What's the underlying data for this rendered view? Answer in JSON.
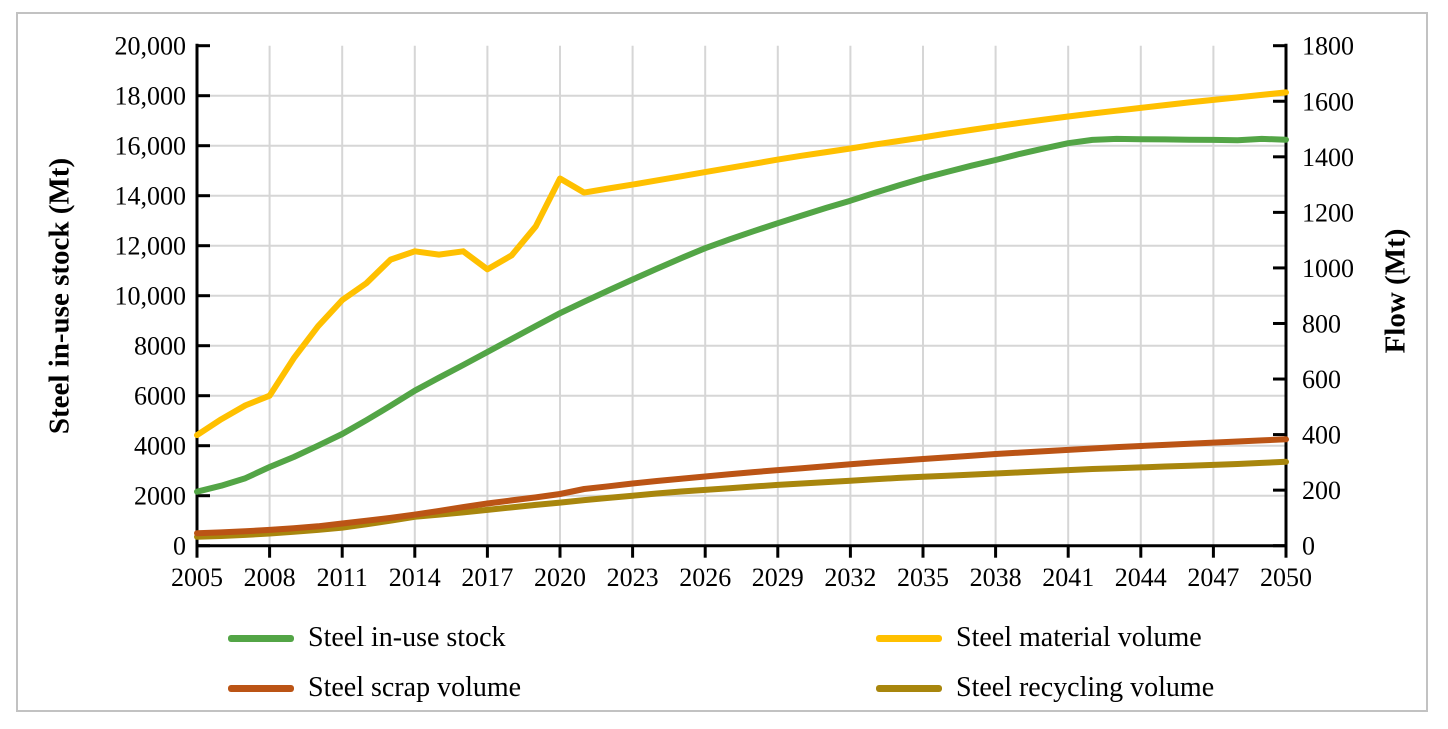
{
  "figure": {
    "background_color": "#ffffff",
    "border_color": "#c2c2c2",
    "gridline_color": "#d6d6d6",
    "axis_color": "#000000"
  },
  "chart_data": {
    "type": "line",
    "title": "",
    "grid": true,
    "legend_position": "bottom",
    "left_axis": {
      "label": "Steel in-use stock (Mt)",
      "min": 0,
      "max": 20000,
      "ticks": [
        {
          "value": 20000,
          "label": "20,000"
        },
        {
          "value": 18000,
          "label": "18,000"
        },
        {
          "value": 16000,
          "label": "16,000"
        },
        {
          "value": 14000,
          "label": "14,000"
        },
        {
          "value": 12000,
          "label": "12,000"
        },
        {
          "value": 10000,
          "label": "10,000"
        },
        {
          "value": 8000,
          "label": "8000"
        },
        {
          "value": 6000,
          "label": "6000"
        },
        {
          "value": 4000,
          "label": "4000"
        },
        {
          "value": 2000,
          "label": "2000"
        },
        {
          "value": 0,
          "label": "0"
        }
      ]
    },
    "right_axis": {
      "label": "Flow (Mt)",
      "min": 0,
      "max": 1800,
      "ticks": [
        {
          "value": 1800,
          "label": "1800"
        },
        {
          "value": 1600,
          "label": "1600"
        },
        {
          "value": 1400,
          "label": "1400"
        },
        {
          "value": 1200,
          "label": "1200"
        },
        {
          "value": 1000,
          "label": "1000"
        },
        {
          "value": 800,
          "label": "800"
        },
        {
          "value": 600,
          "label": "600"
        },
        {
          "value": 400,
          "label": "400"
        },
        {
          "value": 200,
          "label": "200"
        },
        {
          "value": 0,
          "label": "0"
        }
      ]
    },
    "x_axis": {
      "min": 2005,
      "max": 2050,
      "ticks": [
        {
          "value": 2005,
          "label": "2005"
        },
        {
          "value": 2008,
          "label": "2008"
        },
        {
          "value": 2011,
          "label": "2011"
        },
        {
          "value": 2014,
          "label": "2014"
        },
        {
          "value": 2017,
          "label": "2017"
        },
        {
          "value": 2020,
          "label": "2020"
        },
        {
          "value": 2023,
          "label": "2023"
        },
        {
          "value": 2026,
          "label": "2026"
        },
        {
          "value": 2029,
          "label": "2029"
        },
        {
          "value": 2032,
          "label": "2032"
        },
        {
          "value": 2035,
          "label": "2035"
        },
        {
          "value": 2038,
          "label": "2038"
        },
        {
          "value": 2041,
          "label": "2041"
        },
        {
          "value": 2044,
          "label": "2044"
        },
        {
          "value": 2047,
          "label": "2047"
        },
        {
          "value": 2050,
          "label": "2050"
        }
      ]
    },
    "x_start": 2005,
    "x_step": 1,
    "series": [
      {
        "name": "Steel in-use stock",
        "axis": "left",
        "color": "#53a546",
        "values": [
          2160,
          2400,
          2700,
          3150,
          3550,
          4000,
          4470,
          5020,
          5600,
          6200,
          6720,
          7230,
          7750,
          8270,
          8790,
          9300,
          9760,
          10210,
          10650,
          11080,
          11500,
          11900,
          12250,
          12580,
          12900,
          13210,
          13510,
          13800,
          14110,
          14410,
          14700,
          14950,
          15200,
          15430,
          15670,
          15890,
          16100,
          16230,
          16270,
          16260,
          16250,
          16240,
          16230,
          16220,
          16270,
          16240
        ]
      },
      {
        "name": "Steel material volume",
        "axis": "right",
        "color": "#ffc000",
        "values": [
          398,
          455,
          505,
          540,
          675,
          790,
          884,
          945,
          1030,
          1060,
          1048,
          1060,
          995,
          1045,
          1150,
          1322,
          1271,
          1286,
          1300,
          1315,
          1330,
          1345,
          1360,
          1375,
          1390,
          1404,
          1417,
          1430,
          1444,
          1457,
          1470,
          1484,
          1497,
          1510,
          1522,
          1534,
          1545,
          1556,
          1566,
          1576,
          1586,
          1596,
          1605,
          1614,
          1623,
          1632
        ]
      },
      {
        "name": "Steel scrap volume",
        "axis": "right",
        "color": "#bb5415",
        "values": [
          45,
          48,
          52,
          57,
          63,
          70,
          80,
          90,
          100,
          112,
          125,
          139,
          152,
          163,
          174,
          186,
          204,
          214,
          224,
          233,
          241,
          249,
          257,
          265,
          272,
          279,
          286,
          293,
          300,
          306,
          312,
          318,
          324,
          330,
          335,
          340,
          345,
          350,
          355,
          359,
          363,
          367,
          371,
          375,
          379,
          383
        ]
      },
      {
        "name": "Steel recycling volume",
        "axis": "right",
        "color": "#a8860d",
        "values": [
          32,
          35,
          39,
          44,
          50,
          57,
          65,
          77,
          90,
          104,
          112,
          120,
          129,
          138,
          147,
          155,
          164,
          172,
          180,
          188,
          195,
          201,
          207,
          213,
          219,
          224,
          229,
          234,
          239,
          244,
          248,
          252,
          256,
          260,
          264,
          268,
          272,
          276,
          279,
          282,
          285,
          288,
          291,
          294,
          298,
          302
        ]
      }
    ]
  }
}
